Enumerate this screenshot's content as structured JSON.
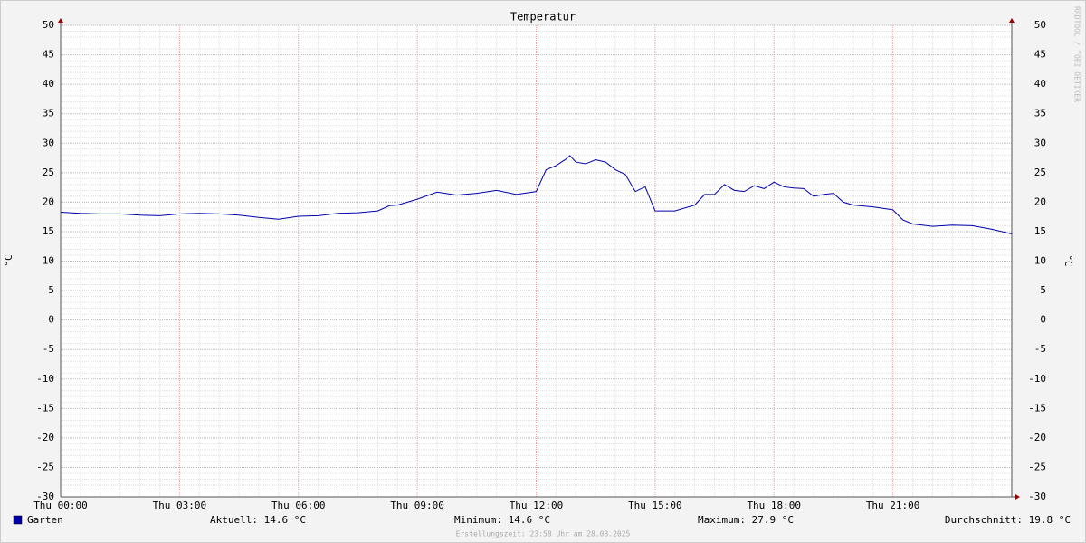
{
  "chart_data": {
    "type": "line",
    "title": "Temperatur",
    "y_label": "°C",
    "watermark": "RRDTOOL / TOBI OETIKER",
    "x": [
      0,
      0.5,
      1,
      1.5,
      2,
      2.5,
      3,
      3.5,
      4,
      4.5,
      5,
      5.5,
      6,
      6.5,
      7,
      7.5,
      8,
      8.3,
      8.5,
      9,
      9.5,
      10,
      10.5,
      11,
      11.5,
      12,
      12.25,
      12.5,
      12.75,
      12.85,
      13,
      13.25,
      13.5,
      13.75,
      14,
      14.25,
      14.5,
      14.75,
      15,
      15.5,
      16,
      16.25,
      16.5,
      16.75,
      17,
      17.25,
      17.5,
      17.75,
      18,
      18.25,
      18.5,
      18.75,
      19,
      19.25,
      19.5,
      19.75,
      20,
      20.5,
      21,
      21.25,
      21.5,
      22,
      22.5,
      23,
      23.5,
      24
    ],
    "series": [
      {
        "name": "Garten",
        "color": "#0000aa",
        "values": [
          18.3,
          18.1,
          18.0,
          18.0,
          17.8,
          17.7,
          18.0,
          18.1,
          18.0,
          17.8,
          17.4,
          17.1,
          17.6,
          17.7,
          18.1,
          18.2,
          18.5,
          19.4,
          19.5,
          20.5,
          21.7,
          21.2,
          21.5,
          22.0,
          21.3,
          21.8,
          25.5,
          26.2,
          27.3,
          27.9,
          26.8,
          26.5,
          27.2,
          26.8,
          25.5,
          24.7,
          21.8,
          22.6,
          18.5,
          18.5,
          19.5,
          21.3,
          21.3,
          23.0,
          22.0,
          21.8,
          22.8,
          22.3,
          23.4,
          22.6,
          22.4,
          22.3,
          21.0,
          21.3,
          21.5,
          20.0,
          19.5,
          19.2,
          18.7,
          17.0,
          16.3,
          15.9,
          16.1,
          16.0,
          15.4,
          14.6
        ]
      }
    ],
    "xlim": [
      0,
      24
    ],
    "xticks": [
      {
        "value": 0,
        "label": "Thu 00:00"
      },
      {
        "value": 3,
        "label": "Thu 03:00"
      },
      {
        "value": 6,
        "label": "Thu 06:00"
      },
      {
        "value": 9,
        "label": "Thu 09:00"
      },
      {
        "value": 12,
        "label": "Thu 12:00"
      },
      {
        "value": 15,
        "label": "Thu 15:00"
      },
      {
        "value": 18,
        "label": "Thu 18:00"
      },
      {
        "value": 21,
        "label": "Thu 21:00"
      }
    ],
    "ylim": [
      -30,
      50
    ],
    "yticks": [
      -30,
      -25,
      -20,
      -15,
      -10,
      -5,
      0,
      5,
      10,
      15,
      20,
      25,
      30,
      35,
      40,
      45,
      50
    ],
    "grid": true,
    "legend_stats": [
      "Aktuell: 14.6 °C",
      "Minimum: 14.6 °C",
      "Maximum: 27.9 °C",
      "Durchschnitt: 19.8 °C"
    ],
    "footer": "Erstellungszeit: 23:58 Uhr am 28.08.2025"
  }
}
